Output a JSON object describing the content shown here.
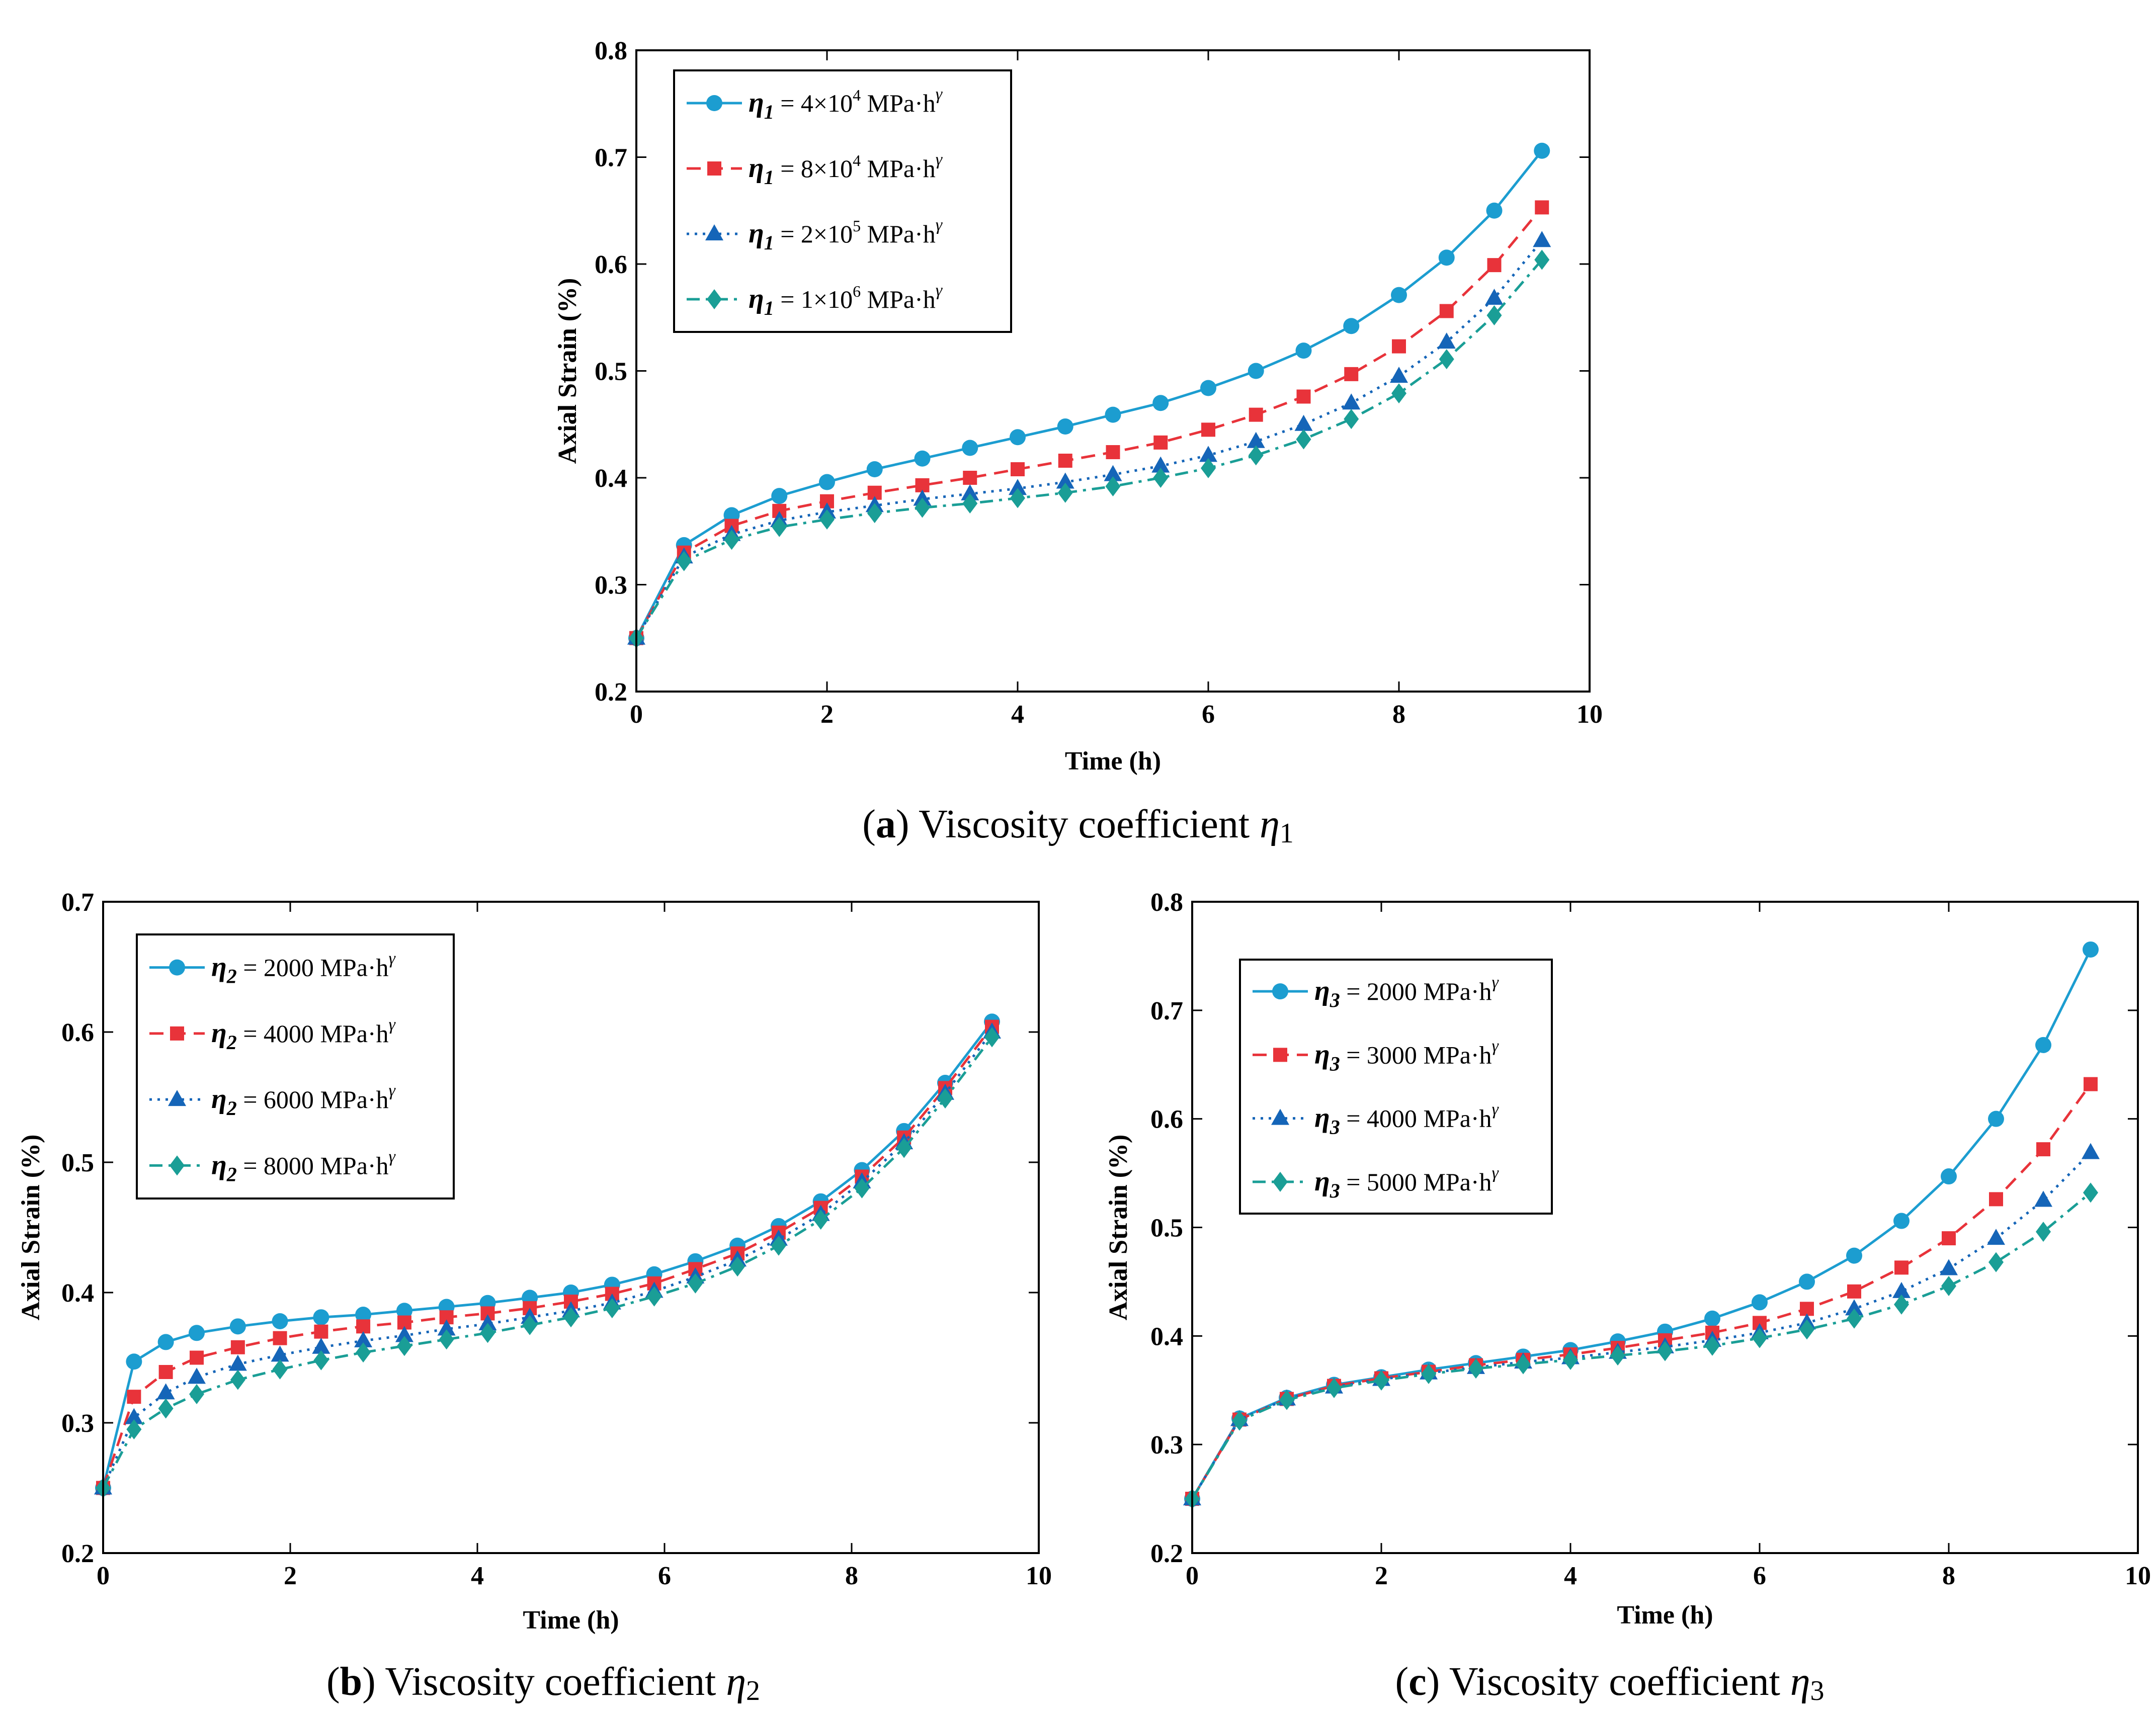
{
  "figure": {
    "panels": [
      {
        "id": "a",
        "caption_letter": "a",
        "caption_text": "Viscosity coefficient ",
        "caption_symbol": "η",
        "caption_subscript": "1"
      },
      {
        "id": "b",
        "caption_letter": "b",
        "caption_text": "Viscosity coefficient ",
        "caption_symbol": "η",
        "caption_subscript": "2"
      },
      {
        "id": "c",
        "caption_letter": "c",
        "caption_text": "Viscosity coefficient ",
        "caption_symbol": "η",
        "caption_subscript": "3"
      }
    ]
  },
  "colors": {
    "series1": "#1c9dd0",
    "series2": "#e8333a",
    "series3": "#1565b8",
    "series4": "#1a9e96",
    "axis": "#000000"
  },
  "chart_data": [
    {
      "type": "line",
      "panel": "a",
      "xlabel": "Time (h)",
      "ylabel": "Axial Strain (%)",
      "xlim": [
        0,
        10
      ],
      "ylim": [
        0.2,
        0.8
      ],
      "xticks": [
        "0",
        "2",
        "4",
        "6",
        "8",
        "10"
      ],
      "yticks": [
        "0.2",
        "0.3",
        "0.4",
        "0.5",
        "0.6",
        "0.7",
        "0.8"
      ],
      "legend_position": "top-left",
      "x": [
        0,
        0.5,
        1,
        1.5,
        2,
        2.5,
        3,
        3.5,
        4,
        4.5,
        5,
        5.5,
        6,
        6.5,
        7,
        7.5,
        8,
        8.5,
        9,
        9.5
      ],
      "series": [
        {
          "symbol": "η",
          "sub": "1",
          "value_text": " = 4×10",
          "sup": "4",
          "unit": " MPa·h",
          "unit_sup": "γ",
          "values": [
            0.25,
            0.337,
            0.365,
            0.383,
            0.396,
            0.408,
            0.418,
            0.428,
            0.438,
            0.448,
            0.459,
            0.47,
            0.484,
            0.5,
            0.519,
            0.542,
            0.571,
            0.606,
            0.65,
            0.706
          ]
        },
        {
          "symbol": "η",
          "sub": "1",
          "value_text": " = 8×10",
          "sup": "4",
          "unit": " MPa·h",
          "unit_sup": "γ",
          "values": [
            0.25,
            0.33,
            0.355,
            0.369,
            0.378,
            0.386,
            0.393,
            0.4,
            0.408,
            0.416,
            0.424,
            0.433,
            0.445,
            0.459,
            0.476,
            0.497,
            0.523,
            0.556,
            0.599,
            0.653
          ]
        },
        {
          "symbol": "η",
          "sub": "1",
          "value_text": " = 2×10",
          "sup": "5",
          "unit": " MPa·h",
          "unit_sup": "γ",
          "values": [
            0.25,
            0.326,
            0.347,
            0.36,
            0.368,
            0.374,
            0.38,
            0.385,
            0.39,
            0.396,
            0.403,
            0.411,
            0.421,
            0.434,
            0.45,
            0.47,
            0.495,
            0.527,
            0.568,
            0.622
          ]
        },
        {
          "symbol": "η",
          "sub": "1",
          "value_text": " = 1×10",
          "sup": "6",
          "unit": " MPa·h",
          "unit_sup": "γ",
          "values": [
            0.25,
            0.322,
            0.342,
            0.354,
            0.361,
            0.367,
            0.372,
            0.376,
            0.381,
            0.386,
            0.392,
            0.4,
            0.409,
            0.421,
            0.436,
            0.455,
            0.479,
            0.511,
            0.552,
            0.604
          ]
        }
      ]
    },
    {
      "type": "line",
      "panel": "b",
      "xlabel": "Time (h)",
      "ylabel": "Axial Strain (%)",
      "xlim": [
        0,
        10
      ],
      "ylim": [
        0.2,
        0.7
      ],
      "xticks": [
        "0",
        "2",
        "4",
        "6",
        "8",
        "10"
      ],
      "yticks": [
        "0.2",
        "0.3",
        "0.4",
        "0.5",
        "0.6",
        "0.7"
      ],
      "legend_position": "top-left",
      "x": [
        0,
        0.33,
        0.67,
        1.0,
        1.44,
        1.89,
        2.33,
        2.78,
        3.22,
        3.67,
        4.11,
        4.56,
        5.0,
        5.44,
        5.89,
        6.33,
        6.78,
        7.22,
        7.67,
        8.11,
        8.56,
        9.0,
        9.5
      ],
      "series": [
        {
          "symbol": "η",
          "sub": "2",
          "value_text": " = 2000",
          "sup": "",
          "unit": " MPa·h",
          "unit_sup": "γ",
          "values": [
            0.25,
            0.347,
            0.362,
            0.369,
            0.374,
            0.378,
            0.381,
            0.383,
            0.386,
            0.389,
            0.392,
            0.396,
            0.4,
            0.406,
            0.414,
            0.424,
            0.436,
            0.451,
            0.47,
            0.494,
            0.524,
            0.561,
            0.608
          ]
        },
        {
          "symbol": "η",
          "sub": "2",
          "value_text": " = 4000",
          "sup": "",
          "unit": " MPa·h",
          "unit_sup": "γ",
          "values": [
            0.25,
            0.32,
            0.339,
            0.35,
            0.358,
            0.365,
            0.37,
            0.374,
            0.377,
            0.381,
            0.384,
            0.388,
            0.393,
            0.399,
            0.407,
            0.418,
            0.43,
            0.446,
            0.465,
            0.489,
            0.519,
            0.557,
            0.604
          ]
        },
        {
          "symbol": "η",
          "sub": "2",
          "value_text": " = 6000",
          "sup": "",
          "unit": " MPa·h",
          "unit_sup": "γ",
          "values": [
            0.25,
            0.304,
            0.323,
            0.335,
            0.345,
            0.352,
            0.358,
            0.363,
            0.367,
            0.372,
            0.376,
            0.381,
            0.386,
            0.392,
            0.401,
            0.412,
            0.425,
            0.441,
            0.46,
            0.485,
            0.515,
            0.553,
            0.6
          ]
        },
        {
          "symbol": "η",
          "sub": "2",
          "value_text": " = 8000",
          "sup": "",
          "unit": " MPa·h",
          "unit_sup": "γ",
          "values": [
            0.25,
            0.295,
            0.311,
            0.322,
            0.333,
            0.341,
            0.348,
            0.354,
            0.359,
            0.364,
            0.369,
            0.375,
            0.381,
            0.388,
            0.397,
            0.407,
            0.42,
            0.436,
            0.456,
            0.48,
            0.511,
            0.549,
            0.596
          ]
        }
      ]
    },
    {
      "type": "line",
      "panel": "c",
      "xlabel": "Time (h)",
      "ylabel": "Axial Strain (%)",
      "xlim": [
        0,
        10
      ],
      "ylim": [
        0.2,
        0.8
      ],
      "xticks": [
        "0",
        "2",
        "4",
        "6",
        "8",
        "10"
      ],
      "yticks": [
        "0.2",
        "0.3",
        "0.4",
        "0.5",
        "0.6",
        "0.7",
        "0.8"
      ],
      "legend_position": "top-left",
      "x": [
        0,
        0.5,
        1,
        1.5,
        2,
        2.5,
        3,
        3.5,
        4,
        4.5,
        5,
        5.5,
        6,
        6.5,
        7,
        7.5,
        8,
        8.5,
        9,
        9.5
      ],
      "series": [
        {
          "symbol": "η",
          "sub": "3",
          "value_text": " = 2000",
          "sup": "",
          "unit": " MPa·h",
          "unit_sup": "γ",
          "values": [
            0.25,
            0.324,
            0.343,
            0.355,
            0.362,
            0.369,
            0.375,
            0.381,
            0.387,
            0.395,
            0.404,
            0.416,
            0.431,
            0.45,
            0.474,
            0.506,
            0.547,
            0.6,
            0.668,
            0.756
          ]
        },
        {
          "symbol": "η",
          "sub": "3",
          "value_text": " = 3000",
          "sup": "",
          "unit": " MPa·h",
          "unit_sup": "γ",
          "values": [
            0.25,
            0.323,
            0.342,
            0.354,
            0.361,
            0.367,
            0.373,
            0.378,
            0.383,
            0.389,
            0.396,
            0.403,
            0.412,
            0.425,
            0.441,
            0.463,
            0.49,
            0.526,
            0.572,
            0.632
          ]
        },
        {
          "symbol": "η",
          "sub": "3",
          "value_text": " = 4000",
          "sup": "",
          "unit": " MPa·h",
          "unit_sup": "γ",
          "values": [
            0.25,
            0.323,
            0.342,
            0.353,
            0.36,
            0.366,
            0.371,
            0.376,
            0.38,
            0.385,
            0.39,
            0.396,
            0.403,
            0.412,
            0.425,
            0.441,
            0.462,
            0.49,
            0.525,
            0.569
          ]
        },
        {
          "symbol": "η",
          "sub": "3",
          "value_text": " = 5000",
          "sup": "",
          "unit": " MPa·h",
          "unit_sup": "γ",
          "values": [
            0.25,
            0.322,
            0.341,
            0.352,
            0.359,
            0.365,
            0.37,
            0.374,
            0.378,
            0.382,
            0.386,
            0.391,
            0.398,
            0.406,
            0.416,
            0.429,
            0.446,
            0.468,
            0.496,
            0.532
          ]
        }
      ]
    }
  ]
}
